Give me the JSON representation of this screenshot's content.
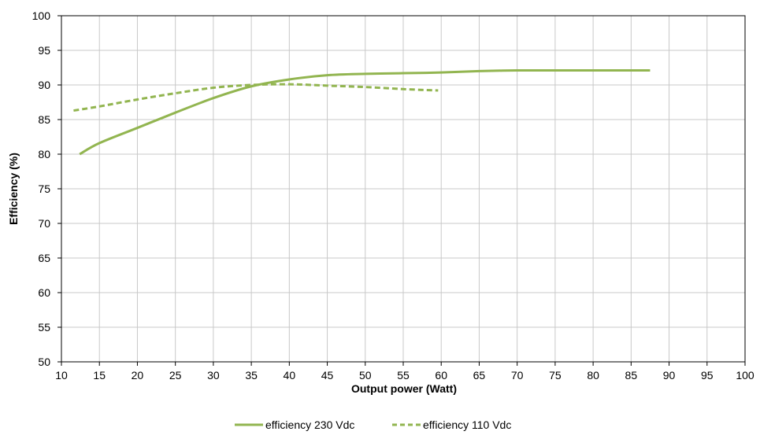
{
  "chart_data": {
    "type": "line",
    "xlabel": "Output power (Watt)",
    "ylabel": "Efficiency (%)",
    "xlim": [
      10,
      100
    ],
    "ylim": [
      50,
      100
    ],
    "x_ticks": [
      10,
      15,
      20,
      25,
      30,
      35,
      40,
      45,
      50,
      55,
      60,
      65,
      70,
      75,
      80,
      85,
      90,
      95,
      100
    ],
    "y_ticks": [
      50,
      55,
      60,
      65,
      70,
      75,
      80,
      85,
      90,
      95,
      100
    ],
    "grid": true,
    "legend_position": "bottom",
    "color": "#92b550",
    "series": [
      {
        "name": "efficiency 230 Vdc",
        "line_style": "solid",
        "x": [
          12.4,
          15,
          20,
          25,
          30,
          35,
          40,
          45,
          50,
          55,
          60,
          65,
          70,
          75,
          80,
          85,
          87.5
        ],
        "y": [
          80.0,
          81.6,
          83.8,
          86.0,
          88.1,
          89.8,
          90.8,
          91.4,
          91.6,
          91.7,
          91.8,
          92.0,
          92.1,
          92.1,
          92.1,
          92.1,
          92.1
        ]
      },
      {
        "name": "efficiency 110 Vdc",
        "line_style": "dashed",
        "x": [
          11.6,
          15,
          20,
          25,
          30,
          35,
          40,
          45,
          50,
          55,
          59.6
        ],
        "y": [
          86.3,
          86.9,
          87.9,
          88.8,
          89.6,
          90.0,
          90.1,
          89.9,
          89.7,
          89.4,
          89.2
        ]
      }
    ]
  }
}
